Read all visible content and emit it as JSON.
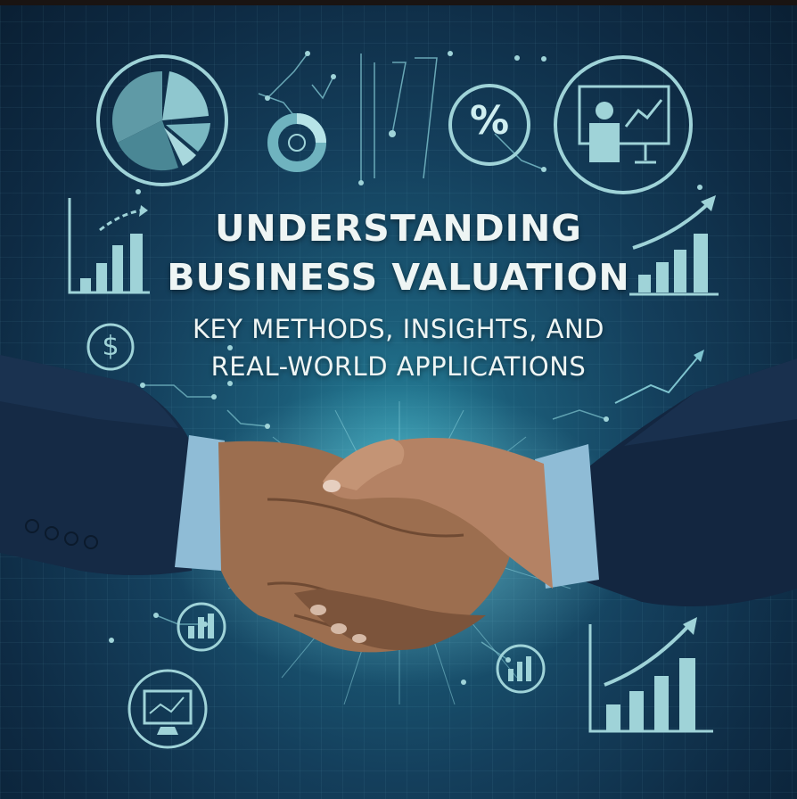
{
  "poster": {
    "title_line_1": "UNDERSTANDING",
    "title_line_2": "BUSINESS VALUATION",
    "subtitle_line_1": "KEY METHODS, INSIGHTS, AND",
    "subtitle_line_2": "REAL-WORLD APPLICATIONS"
  },
  "icons": {
    "percent_symbol": "%",
    "dollar_symbol": "$"
  },
  "colors": {
    "background_dark": "#0e2b44",
    "background_glow": "#2a8fa6",
    "icon_stroke": "#9fd3d8",
    "title_text": "#eef5f4"
  }
}
